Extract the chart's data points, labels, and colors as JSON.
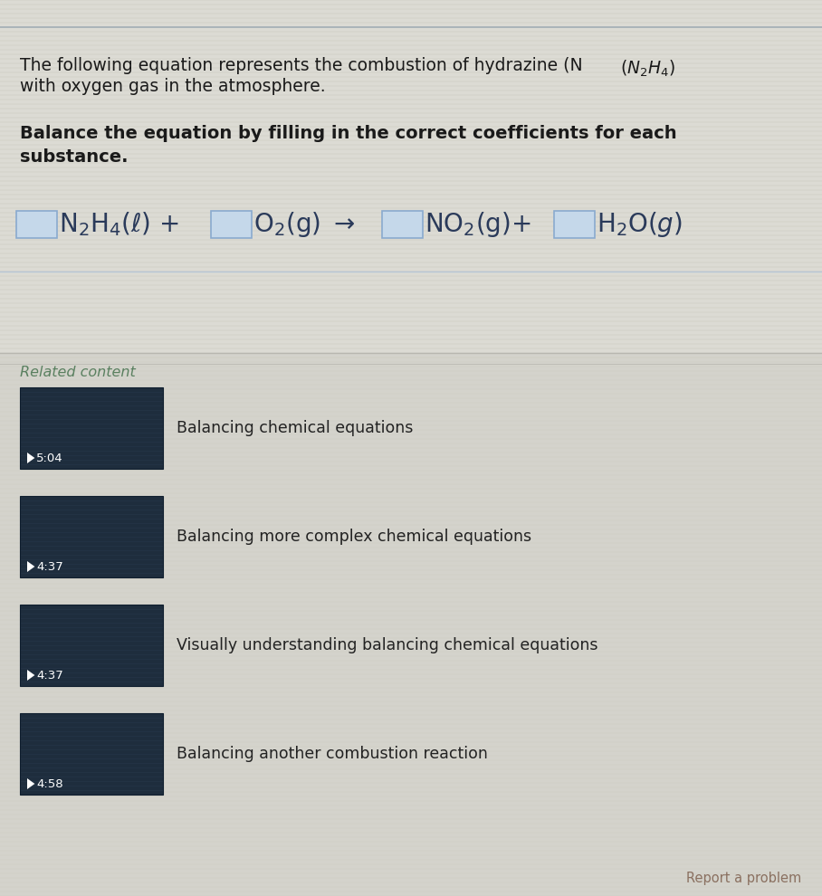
{
  "bg_color": "#d4d3cc",
  "top_section_color": "#d8d7d1",
  "bottom_section_color": "#d2d1ca",
  "grid_line_color": "#c5c4bc",
  "title_text1": "The following equation represents the combustion of hydrazine (N",
  "title_text1b": "2",
  "title_text1c": "H",
  "title_text1d": "4",
  "title_text1e": ")",
  "title_text2": "with oxygen gas in the atmosphere.",
  "bold_text1": "Balance the equation by filling in the correct coefficients for each",
  "bold_text2": "substance.",
  "related_content_label": "Related content",
  "videos": [
    {
      "title": "Balancing chemical equations",
      "duration": "5:04"
    },
    {
      "title": "Balancing more complex chemical equations",
      "duration": "4:37"
    },
    {
      "title": "Visually understanding balancing chemical equations",
      "duration": "4:37"
    },
    {
      "title": "Balancing another combustion reaction",
      "duration": "4:58"
    }
  ],
  "report_text": "Report a problem",
  "thumbnail_color": "#1e2d3d",
  "thumbnail_dark": "#152030",
  "play_color": "#ffffff",
  "divider_color": "#b8b7b0",
  "related_text_color": "#5a8060",
  "report_text_color": "#8a7060",
  "equation_text_color": "#2a3a5a",
  "box_border_color": "#8aaacf",
  "box_fill_color": "#c5d8ea",
  "top_border_color": "#8899aa"
}
